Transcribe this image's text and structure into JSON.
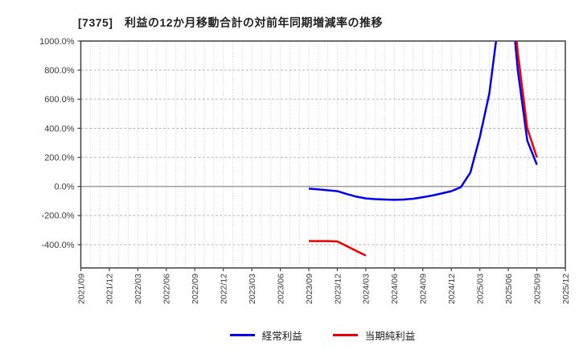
{
  "chart_data": {
    "type": "line",
    "title": "[7375]　利益の12か月移動合計の対前年同期増減率の推移",
    "x_axis": {
      "start": "2021/09",
      "end": "2025/12",
      "total_months": 51,
      "months_per_labelled_tick": 3,
      "tick_labels": [
        "2021/09",
        "2021/12",
        "2022/03",
        "2022/06",
        "2022/09",
        "2022/12",
        "2023/03",
        "2023/06",
        "2023/09",
        "2023/12",
        "2024/03",
        "2024/06",
        "2024/09",
        "2024/12",
        "2025/03",
        "2025/06",
        "2025/09",
        "2025/12"
      ]
    },
    "y_axis": {
      "unit": "%",
      "lim": [
        -560,
        1000
      ],
      "ticks": [
        {
          "value": 1000,
          "label": "1000.0%"
        },
        {
          "value": 800,
          "label": "800.0%"
        },
        {
          "value": 600,
          "label": "600.0%"
        },
        {
          "value": 400,
          "label": "400.0%"
        },
        {
          "value": 200,
          "label": "200.0%"
        },
        {
          "value": 0,
          "label": "0.0%"
        },
        {
          "value": -200,
          "label": "-200.0%"
        },
        {
          "value": -400,
          "label": "-400.0%"
        }
      ]
    },
    "grid": {
      "vertical": "monthly-dotted",
      "horizontal": "per-200pct-dashed",
      "zero_line": true
    },
    "legend_position": "bottom-center",
    "series": [
      {
        "name": "経常利益",
        "color": "#0000ee",
        "segments": [
          [
            [
              24,
              -15
            ],
            [
              25,
              -20
            ],
            [
              26,
              -26
            ],
            [
              27,
              -32
            ],
            [
              28,
              -52
            ],
            [
              29,
              -70
            ],
            [
              30,
              -82
            ],
            [
              31,
              -87
            ],
            [
              32,
              -90
            ],
            [
              33,
              -92
            ],
            [
              34,
              -90
            ],
            [
              35,
              -84
            ],
            [
              36,
              -74
            ],
            [
              37,
              -62
            ],
            [
              38,
              -48
            ],
            [
              39,
              -32
            ],
            [
              40,
              -5
            ],
            [
              41,
              95
            ],
            [
              42,
              340
            ],
            [
              43,
              640
            ],
            [
              44,
              1150
            ],
            [
              45,
              1500
            ],
            [
              46,
              800
            ],
            [
              47,
              315
            ],
            [
              48,
              150
            ]
          ]
        ]
      },
      {
        "name": "当期純利益",
        "color": "#ee0000",
        "segments": [
          [
            [
              24,
              -375
            ],
            [
              25,
              -375
            ],
            [
              26,
              -375
            ],
            [
              27,
              -378
            ],
            [
              28,
              -410
            ],
            [
              29,
              -443
            ],
            [
              30,
              -475
            ]
          ],
          [
            [
              45,
              1600
            ],
            [
              46,
              920
            ],
            [
              47,
              400
            ],
            [
              48,
              200
            ]
          ]
        ]
      }
    ]
  }
}
